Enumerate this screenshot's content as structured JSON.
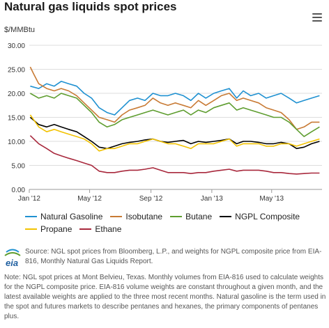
{
  "title": "Natural gas liquids spot prices",
  "unit_label": "$/MMBtu",
  "footer": {
    "logo_text": "eia",
    "source": "Source: NGL spot prices from Bloomberg, L.P., and weights for NGPL composite price from EIA-816, Monthly Natural Gas Liquids Report.",
    "note": "Note: NGL spot prices at Mont Belvieu, Texas. Monthly volumes from EIA-816 used to calculate weights for the NGPL composite price. EIA-816 volume weights are constant throughout a given month, and the latest available weights are applied to the three most recent months. Natural gasoline is the term used in the spot and futures markets to describe pentanes and hexanes, the primary components of pentanes plus."
  },
  "chart_data": {
    "type": "line",
    "title": "Natural gas liquids spot prices",
    "ylabel": "$/MMBtu",
    "xlabel": "",
    "ylim": [
      0,
      30
    ],
    "yticks": [
      "0.00",
      "5.00",
      "10.00",
      "15.00",
      "20.00",
      "25.00",
      "30.00"
    ],
    "xlim": [
      "2012-01-01",
      "2013-08-10"
    ],
    "xticks": [
      {
        "label": "Jan '12",
        "date": "2012-01-01"
      },
      {
        "label": "May '12",
        "date": "2012-05-01"
      },
      {
        "label": "Sep '12",
        "date": "2012-09-01"
      },
      {
        "label": "Jan '13",
        "date": "2013-01-01"
      },
      {
        "label": "May '13",
        "date": "2013-05-01"
      }
    ],
    "grid": true,
    "legend_position": "bottom",
    "series": [
      {
        "name": "Natural Gasoline",
        "color": "#1f91d1",
        "x": [
          "2012-01-03",
          "2012-01-20",
          "2012-02-05",
          "2012-02-20",
          "2012-03-05",
          "2012-03-20",
          "2012-04-05",
          "2012-04-20",
          "2012-05-05",
          "2012-05-20",
          "2012-06-05",
          "2012-06-20",
          "2012-07-05",
          "2012-07-20",
          "2012-08-05",
          "2012-08-20",
          "2012-09-05",
          "2012-09-20",
          "2012-10-05",
          "2012-10-20",
          "2012-11-05",
          "2012-11-20",
          "2012-12-05",
          "2012-12-20",
          "2013-01-05",
          "2013-01-20",
          "2013-02-05",
          "2013-02-20",
          "2013-03-05",
          "2013-03-20",
          "2013-04-05",
          "2013-04-20",
          "2013-05-05",
          "2013-05-20",
          "2013-06-05",
          "2013-06-20",
          "2013-07-05",
          "2013-07-20",
          "2013-08-05"
        ],
        "values": [
          21.5,
          21.0,
          22.0,
          21.5,
          22.5,
          22.0,
          21.5,
          20.0,
          19.0,
          17.0,
          16.0,
          15.5,
          17.0,
          18.5,
          19.0,
          18.5,
          20.0,
          19.5,
          19.5,
          20.0,
          19.5,
          18.5,
          20.0,
          19.0,
          20.0,
          20.5,
          21.0,
          19.0,
          20.5,
          19.5,
          20.0,
          19.0,
          19.5,
          20.0,
          19.0,
          18.0,
          18.5,
          19.0,
          19.5
        ]
      },
      {
        "name": "Isobutane",
        "color": "#c87a34",
        "x": [
          "2012-01-03",
          "2012-01-10",
          "2012-01-20",
          "2012-02-05",
          "2012-02-20",
          "2012-03-05",
          "2012-03-20",
          "2012-04-05",
          "2012-04-20",
          "2012-05-05",
          "2012-05-20",
          "2012-06-05",
          "2012-06-20",
          "2012-07-05",
          "2012-07-20",
          "2012-08-05",
          "2012-08-20",
          "2012-09-05",
          "2012-09-20",
          "2012-10-05",
          "2012-10-20",
          "2012-11-05",
          "2012-11-20",
          "2012-12-05",
          "2012-12-20",
          "2013-01-05",
          "2013-01-20",
          "2013-02-05",
          "2013-02-20",
          "2013-03-05",
          "2013-03-20",
          "2013-04-05",
          "2013-04-20",
          "2013-05-05",
          "2013-05-20",
          "2013-06-05",
          "2013-06-20",
          "2013-07-05",
          "2013-07-20",
          "2013-08-05"
        ],
        "values": [
          25.5,
          24.0,
          22.0,
          21.0,
          20.5,
          21.0,
          20.5,
          19.5,
          18.0,
          16.5,
          15.0,
          14.5,
          14.0,
          15.5,
          16.5,
          17.0,
          17.5,
          19.0,
          18.0,
          17.5,
          18.0,
          17.5,
          17.0,
          18.5,
          17.5,
          18.5,
          19.5,
          20.0,
          18.5,
          19.0,
          18.5,
          18.0,
          17.0,
          16.5,
          16.0,
          14.5,
          12.5,
          13.0,
          14.0,
          14.0
        ]
      },
      {
        "name": "Butane",
        "color": "#5e9d2f",
        "x": [
          "2012-01-03",
          "2012-01-20",
          "2012-02-05",
          "2012-02-20",
          "2012-03-05",
          "2012-03-20",
          "2012-04-05",
          "2012-04-20",
          "2012-05-05",
          "2012-05-20",
          "2012-06-05",
          "2012-06-20",
          "2012-07-05",
          "2012-07-20",
          "2012-08-05",
          "2012-08-20",
          "2012-09-05",
          "2012-09-20",
          "2012-10-05",
          "2012-10-20",
          "2012-11-05",
          "2012-11-20",
          "2012-12-05",
          "2012-12-20",
          "2013-01-05",
          "2013-01-20",
          "2013-02-05",
          "2013-02-20",
          "2013-03-05",
          "2013-03-20",
          "2013-04-05",
          "2013-04-20",
          "2013-05-05",
          "2013-05-20",
          "2013-06-05",
          "2013-06-20",
          "2013-07-05",
          "2013-07-20",
          "2013-08-05"
        ],
        "values": [
          20.0,
          19.0,
          19.5,
          19.0,
          20.0,
          19.5,
          19.0,
          17.5,
          16.0,
          14.0,
          13.0,
          13.5,
          14.5,
          15.0,
          15.5,
          16.0,
          16.5,
          16.0,
          15.5,
          16.0,
          16.5,
          15.5,
          16.5,
          16.0,
          17.0,
          17.5,
          18.0,
          16.5,
          17.0,
          16.5,
          16.0,
          15.5,
          15.0,
          15.0,
          14.0,
          12.5,
          11.0,
          12.0,
          13.0
        ]
      },
      {
        "name": "NGPL Composite",
        "color": "#000000",
        "x": [
          "2012-01-03",
          "2012-01-20",
          "2012-02-05",
          "2012-02-20",
          "2012-03-05",
          "2012-03-20",
          "2012-04-05",
          "2012-04-20",
          "2012-05-05",
          "2012-05-20",
          "2012-06-05",
          "2012-06-20",
          "2012-07-05",
          "2012-07-20",
          "2012-08-05",
          "2012-08-20",
          "2012-09-05",
          "2012-09-20",
          "2012-10-05",
          "2012-10-20",
          "2012-11-05",
          "2012-11-20",
          "2012-12-05",
          "2012-12-20",
          "2013-01-05",
          "2013-01-20",
          "2013-02-05",
          "2013-02-20",
          "2013-03-05",
          "2013-03-20",
          "2013-04-05",
          "2013-04-20",
          "2013-05-05",
          "2013-05-20",
          "2013-06-05",
          "2013-06-20",
          "2013-07-05",
          "2013-07-20",
          "2013-08-05"
        ],
        "values": [
          15.0,
          13.5,
          13.0,
          13.5,
          13.0,
          12.5,
          12.0,
          11.0,
          10.0,
          8.8,
          8.5,
          9.0,
          9.5,
          9.8,
          10.0,
          10.3,
          10.5,
          10.0,
          9.8,
          10.0,
          10.2,
          9.5,
          10.0,
          9.8,
          10.0,
          10.2,
          10.5,
          9.5,
          10.0,
          10.0,
          9.8,
          9.5,
          9.5,
          9.8,
          9.5,
          8.5,
          8.8,
          9.5,
          10.0
        ]
      },
      {
        "name": "Propane",
        "color": "#f2c200",
        "x": [
          "2012-01-03",
          "2012-01-20",
          "2012-02-05",
          "2012-02-20",
          "2012-03-05",
          "2012-03-20",
          "2012-04-05",
          "2012-04-20",
          "2012-05-05",
          "2012-05-20",
          "2012-06-05",
          "2012-06-20",
          "2012-07-05",
          "2012-07-20",
          "2012-08-05",
          "2012-08-20",
          "2012-09-05",
          "2012-09-20",
          "2012-10-05",
          "2012-10-20",
          "2012-11-05",
          "2012-11-20",
          "2012-12-05",
          "2012-12-20",
          "2013-01-05",
          "2013-01-20",
          "2013-02-05",
          "2013-02-20",
          "2013-03-05",
          "2013-03-20",
          "2013-04-05",
          "2013-04-20",
          "2013-05-05",
          "2013-05-20",
          "2013-06-05",
          "2013-06-20",
          "2013-07-05",
          "2013-07-20",
          "2013-08-05"
        ],
        "values": [
          15.5,
          13.0,
          12.0,
          12.5,
          12.0,
          11.5,
          11.0,
          10.5,
          9.5,
          8.0,
          8.5,
          8.5,
          9.0,
          9.5,
          9.5,
          10.0,
          10.5,
          10.0,
          9.5,
          9.5,
          9.0,
          8.5,
          9.5,
          9.5,
          9.5,
          10.0,
          10.5,
          9.0,
          9.5,
          9.5,
          9.5,
          9.0,
          9.0,
          9.5,
          9.5,
          9.0,
          9.5,
          10.0,
          10.5
        ]
      },
      {
        "name": "Ethane",
        "color": "#a8283c",
        "x": [
          "2012-01-03",
          "2012-01-20",
          "2012-02-05",
          "2012-02-20",
          "2012-03-05",
          "2012-03-20",
          "2012-04-05",
          "2012-04-20",
          "2012-05-05",
          "2012-05-20",
          "2012-06-05",
          "2012-06-20",
          "2012-07-05",
          "2012-07-20",
          "2012-08-05",
          "2012-08-20",
          "2012-09-05",
          "2012-09-20",
          "2012-10-05",
          "2012-10-20",
          "2012-11-05",
          "2012-11-20",
          "2012-12-05",
          "2012-12-20",
          "2013-01-05",
          "2013-01-20",
          "2013-02-05",
          "2013-02-20",
          "2013-03-05",
          "2013-03-20",
          "2013-04-05",
          "2013-04-20",
          "2013-05-05",
          "2013-05-20",
          "2013-06-05",
          "2013-06-20",
          "2013-07-05",
          "2013-07-20",
          "2013-08-05"
        ],
        "values": [
          11.2,
          9.5,
          8.5,
          7.5,
          7.0,
          6.5,
          6.0,
          5.5,
          5.0,
          3.8,
          3.5,
          3.5,
          3.8,
          4.0,
          4.0,
          4.2,
          4.5,
          4.0,
          3.5,
          3.5,
          3.5,
          3.3,
          3.5,
          3.5,
          3.8,
          4.0,
          4.2,
          3.8,
          4.0,
          4.0,
          4.0,
          3.8,
          3.5,
          3.5,
          3.3,
          3.2,
          3.3,
          3.4,
          3.4
        ]
      }
    ]
  }
}
